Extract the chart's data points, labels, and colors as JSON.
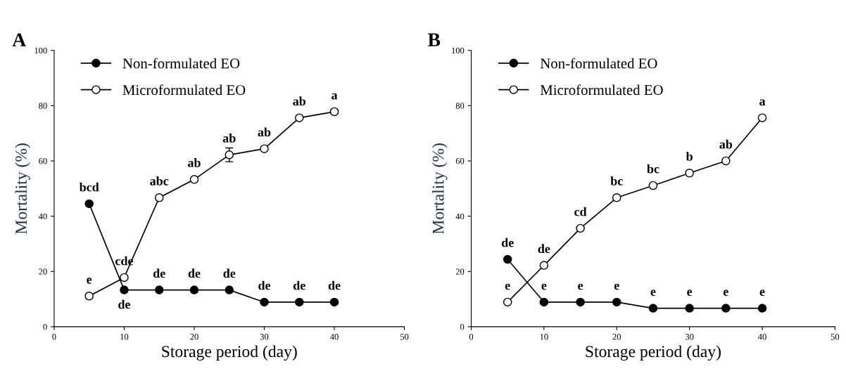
{
  "chart_data": [
    {
      "type": "line",
      "title": "A",
      "xlabel": "Storage period (day)",
      "ylabel": "Mortality (%)",
      "x": [
        5,
        10,
        15,
        20,
        25,
        30,
        35,
        40
      ],
      "xlim": [
        0,
        50
      ],
      "xticks": [
        0,
        10,
        20,
        30,
        40,
        50
      ],
      "ylim": [
        0,
        100
      ],
      "yticks": [
        0,
        20,
        40,
        60,
        80,
        100
      ],
      "grid": false,
      "legend": "top left",
      "line_style": "solid",
      "series": [
        {
          "name": "Non-formulated EO",
          "color": "#000000",
          "marker": "circle",
          "values": [
            44.5,
            13.3,
            13.3,
            13.3,
            13.3,
            8.9,
            8.9,
            8.9
          ]
        },
        {
          "name": "Microformulated EO",
          "color": "#ffffff",
          "marker": "circle",
          "values": [
            11.1,
            17.8,
            46.7,
            53.3,
            62.2,
            64.4,
            75.6,
            77.8
          ],
          "errors": [
            null,
            null,
            null,
            null,
            2.5,
            null,
            null,
            0.8
          ]
        }
      ],
      "annotations": [
        {
          "text": "bcd",
          "x": 5,
          "y": 44.5
        },
        {
          "text": "de",
          "x": 10,
          "y": 13.3
        },
        {
          "text": "de",
          "x": 15,
          "y": 13.3
        },
        {
          "text": "de",
          "x": 20,
          "y": 13.3
        },
        {
          "text": "de",
          "x": 25,
          "y": 13.3
        },
        {
          "text": "de",
          "x": 30,
          "y": 8.9
        },
        {
          "text": "de",
          "x": 35,
          "y": 8.9
        },
        {
          "text": "de",
          "x": 40,
          "y": 8.9
        },
        {
          "text": "e",
          "x": 5,
          "y": 11.1
        },
        {
          "text": "cde",
          "x": 10,
          "y": 17.8
        },
        {
          "text": "abc",
          "x": 15,
          "y": 46.7
        },
        {
          "text": "ab",
          "x": 20,
          "y": 53.3
        },
        {
          "text": "ab",
          "x": 25,
          "y": 62.2
        },
        {
          "text": "ab",
          "x": 30,
          "y": 64.4
        },
        {
          "text": "ab",
          "x": 35,
          "y": 75.6
        },
        {
          "text": "a",
          "x": 40,
          "y": 77.8
        }
      ]
    },
    {
      "type": "line",
      "title": "B",
      "xlabel": "Storage period (day)",
      "ylabel": "Mortality (%)",
      "x": [
        5,
        10,
        15,
        20,
        25,
        30,
        35,
        40
      ],
      "xlim": [
        0,
        50
      ],
      "xticks": [
        0,
        10,
        20,
        30,
        40,
        50
      ],
      "ylim": [
        0,
        100
      ],
      "yticks": [
        0,
        20,
        40,
        60,
        80,
        100
      ],
      "grid": false,
      "legend": "top left",
      "line_style": "solid",
      "series": [
        {
          "name": "Non-formulated EO",
          "color": "#000000",
          "marker": "circle",
          "values": [
            24.4,
            8.9,
            8.9,
            8.9,
            6.7,
            6.7,
            6.7,
            6.7
          ]
        },
        {
          "name": "Microformulated EO",
          "color": "#ffffff",
          "marker": "circle",
          "values": [
            8.9,
            22.2,
            35.6,
            46.7,
            51.1,
            55.6,
            60.0,
            75.6
          ]
        }
      ],
      "annotations": [
        {
          "text": "de",
          "x": 5,
          "y": 24.4
        },
        {
          "text": "e",
          "x": 10,
          "y": 8.9
        },
        {
          "text": "e",
          "x": 15,
          "y": 8.9
        },
        {
          "text": "e",
          "x": 20,
          "y": 8.9
        },
        {
          "text": "e",
          "x": 25,
          "y": 6.7
        },
        {
          "text": "e",
          "x": 30,
          "y": 6.7
        },
        {
          "text": "e",
          "x": 35,
          "y": 6.7
        },
        {
          "text": "e",
          "x": 40,
          "y": 6.7
        },
        {
          "text": "e",
          "x": 5,
          "y": 8.9
        },
        {
          "text": "de",
          "x": 10,
          "y": 22.2
        },
        {
          "text": "cd",
          "x": 15,
          "y": 35.6
        },
        {
          "text": "bc",
          "x": 20,
          "y": 46.7
        },
        {
          "text": "bc",
          "x": 25,
          "y": 51.1
        },
        {
          "text": "b",
          "x": 30,
          "y": 55.6
        },
        {
          "text": "ab",
          "x": 35,
          "y": 60.0
        },
        {
          "text": "a",
          "x": 40,
          "y": 75.6
        }
      ]
    }
  ]
}
